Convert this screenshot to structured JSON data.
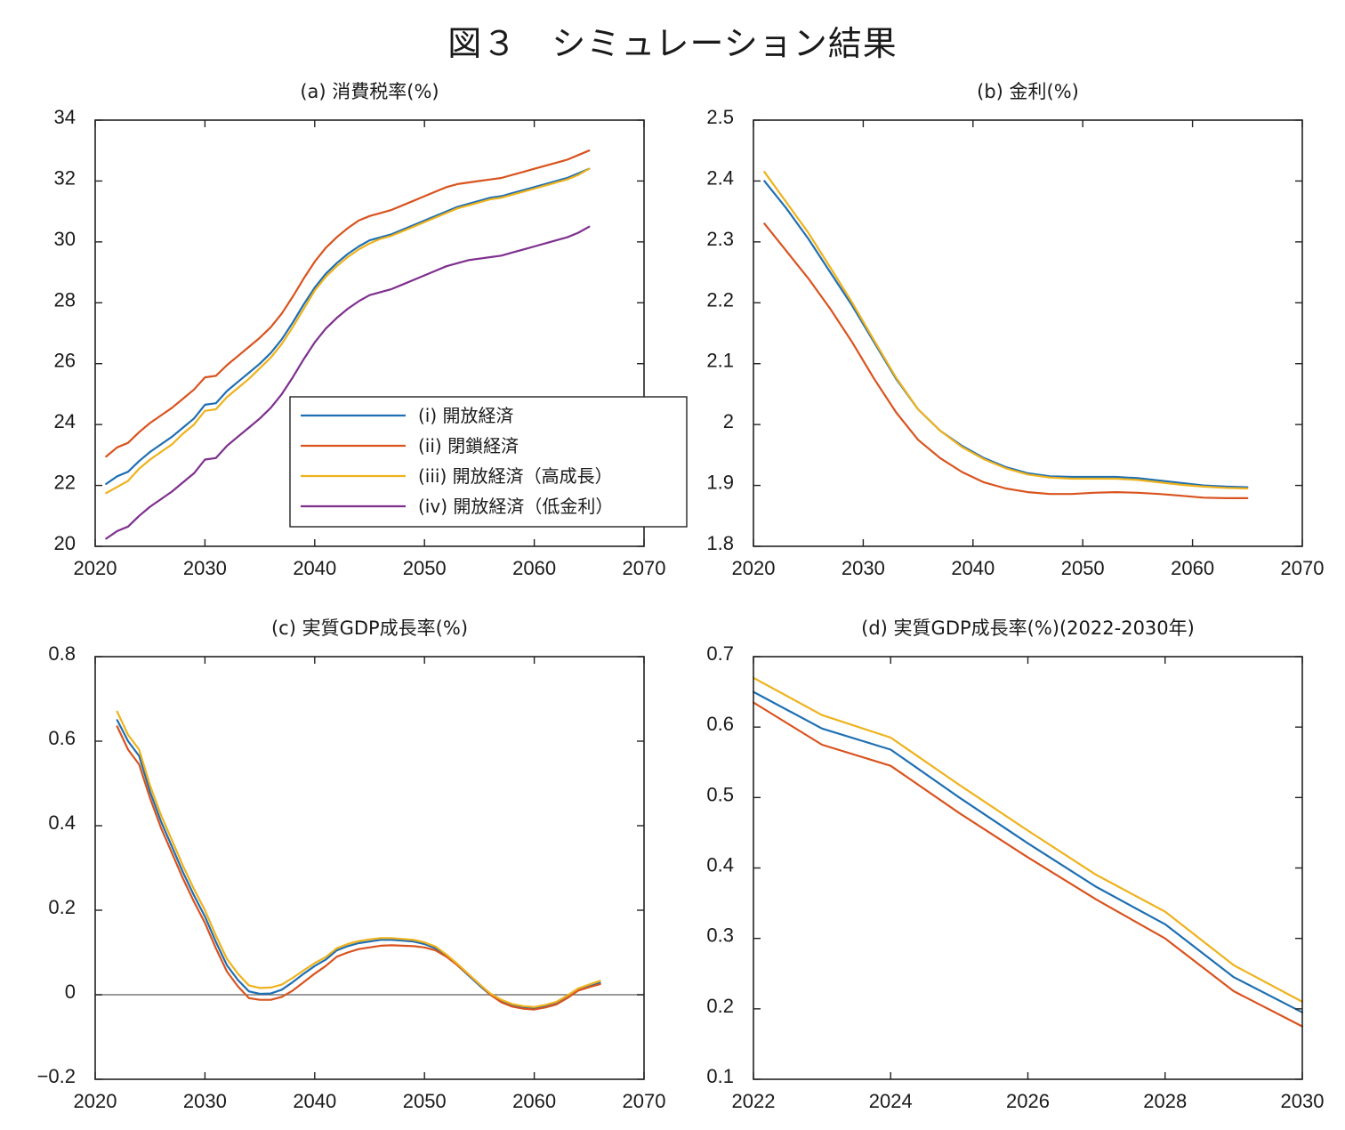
{
  "figure_title": "図３　シミュレーション結果",
  "legend": {
    "entries": [
      {
        "label": "(i) 開放経済",
        "color": "#1f6fb2"
      },
      {
        "label": "(ii) 閉鎖経済",
        "color": "#d9531e"
      },
      {
        "label": "(iii) 開放経済（高成長）",
        "color": "#eeb21c"
      },
      {
        "label": "(iv) 開放経済（低金利）",
        "color": "#7e2f8e"
      }
    ]
  },
  "chart_data": [
    {
      "type": "line",
      "title": "(a) 消費税率(%)",
      "xlim": [
        2020,
        2070
      ],
      "ylim": [
        20,
        34
      ],
      "xticks": [
        2020,
        2030,
        2040,
        2050,
        2060,
        2070
      ],
      "yticks": [
        20,
        22,
        24,
        26,
        28,
        30,
        32,
        34
      ],
      "grid": false,
      "legend_position": "center-right",
      "x": [
        2021,
        2022,
        2023,
        2024,
        2025,
        2026,
        2027,
        2028,
        2029,
        2030,
        2031,
        2032,
        2033,
        2034,
        2035,
        2036,
        2037,
        2038,
        2039,
        2040,
        2041,
        2042,
        2043,
        2044,
        2045,
        2046,
        2047,
        2048,
        2049,
        2050,
        2051,
        2052,
        2053,
        2054,
        2055,
        2056,
        2057,
        2058,
        2059,
        2060,
        2061,
        2062,
        2063,
        2064,
        2065
      ],
      "series": [
        {
          "name": "(i) 開放経済",
          "color": "#1f6fb2",
          "values": [
            22.05,
            22.3,
            22.45,
            22.8,
            23.1,
            23.35,
            23.6,
            23.9,
            24.2,
            24.65,
            24.7,
            25.1,
            25.4,
            25.7,
            26.0,
            26.35,
            26.8,
            27.35,
            27.95,
            28.5,
            28.95,
            29.3,
            29.6,
            29.85,
            30.05,
            30.15,
            30.25,
            30.4,
            30.55,
            30.7,
            30.85,
            31.0,
            31.15,
            31.25,
            31.35,
            31.45,
            31.5,
            31.6,
            31.7,
            31.8,
            31.9,
            32.0,
            32.1,
            32.25,
            32.4
          ]
        },
        {
          "name": "(ii) 閉鎖経済",
          "color": "#d9531e",
          "values": [
            22.95,
            23.25,
            23.4,
            23.75,
            24.05,
            24.3,
            24.55,
            24.85,
            25.15,
            25.55,
            25.6,
            25.95,
            26.25,
            26.55,
            26.85,
            27.2,
            27.65,
            28.2,
            28.8,
            29.35,
            29.8,
            30.15,
            30.45,
            30.7,
            30.85,
            30.95,
            31.05,
            31.2,
            31.35,
            31.5,
            31.65,
            31.8,
            31.9,
            31.95,
            32.0,
            32.05,
            32.1,
            32.2,
            32.3,
            32.4,
            32.5,
            32.6,
            32.7,
            32.85,
            33.0
          ]
        },
        {
          "name": "(iii) 開放経済（高成長）",
          "color": "#eeb21c",
          "values": [
            21.75,
            21.95,
            22.15,
            22.55,
            22.85,
            23.1,
            23.35,
            23.7,
            24.0,
            24.45,
            24.5,
            24.9,
            25.2,
            25.5,
            25.85,
            26.2,
            26.65,
            27.2,
            27.8,
            28.4,
            28.85,
            29.2,
            29.5,
            29.75,
            29.95,
            30.1,
            30.2,
            30.35,
            30.5,
            30.65,
            30.8,
            30.95,
            31.1,
            31.2,
            31.3,
            31.4,
            31.45,
            31.55,
            31.65,
            31.75,
            31.85,
            31.95,
            32.05,
            32.2,
            32.4
          ]
        },
        {
          "name": "(iv) 開放経済（低金利）",
          "color": "#7e2f8e",
          "values": [
            20.25,
            20.5,
            20.65,
            21.0,
            21.3,
            21.55,
            21.8,
            22.1,
            22.4,
            22.85,
            22.9,
            23.3,
            23.6,
            23.9,
            24.2,
            24.55,
            25.0,
            25.55,
            26.15,
            26.7,
            27.15,
            27.5,
            27.8,
            28.05,
            28.25,
            28.35,
            28.45,
            28.6,
            28.75,
            28.9,
            29.05,
            29.2,
            29.3,
            29.4,
            29.45,
            29.5,
            29.55,
            29.65,
            29.75,
            29.85,
            29.95,
            30.05,
            30.15,
            30.3,
            30.5
          ]
        }
      ]
    },
    {
      "type": "line",
      "title": "(b) 金利(%)",
      "xlim": [
        2020,
        2070
      ],
      "ylim": [
        1.8,
        2.5
      ],
      "xticks": [
        2020,
        2030,
        2040,
        2050,
        2060,
        2070
      ],
      "yticks": [
        1.8,
        1.9,
        2,
        2.1,
        2.2,
        2.3,
        2.4,
        2.5
      ],
      "grid": false,
      "x": [
        2021,
        2023,
        2025,
        2027,
        2029,
        2031,
        2033,
        2035,
        2037,
        2039,
        2041,
        2043,
        2045,
        2047,
        2049,
        2051,
        2053,
        2055,
        2057,
        2059,
        2061,
        2063,
        2065
      ],
      "series": [
        {
          "name": "(i) 開放経済",
          "color": "#1f6fb2",
          "values": [
            2.4,
            2.355,
            2.305,
            2.25,
            2.195,
            2.135,
            2.075,
            2.025,
            1.99,
            1.965,
            1.945,
            1.93,
            1.92,
            1.915,
            1.914,
            1.914,
            1.914,
            1.912,
            1.908,
            1.904,
            1.9,
            1.898,
            1.897
          ]
        },
        {
          "name": "(ii) 閉鎖経済",
          "color": "#d9531e",
          "values": [
            2.33,
            2.285,
            2.24,
            2.19,
            2.135,
            2.075,
            2.02,
            1.975,
            1.945,
            1.922,
            1.905,
            1.895,
            1.889,
            1.886,
            1.886,
            1.888,
            1.889,
            1.888,
            1.886,
            1.883,
            1.88,
            1.879,
            1.879
          ]
        },
        {
          "name": "(iii) 開放経済（高成長）",
          "color": "#eeb21c",
          "values": [
            2.415,
            2.365,
            2.315,
            2.258,
            2.2,
            2.138,
            2.077,
            2.025,
            1.99,
            1.963,
            1.943,
            1.928,
            1.918,
            1.913,
            1.911,
            1.911,
            1.911,
            1.909,
            1.905,
            1.901,
            1.898,
            1.896,
            1.895
          ]
        }
      ]
    },
    {
      "type": "line",
      "title": "(c) 実質GDP成長率(%)",
      "xlim": [
        2020,
        2070
      ],
      "ylim": [
        -0.2,
        0.8
      ],
      "xticks": [
        2020,
        2030,
        2040,
        2050,
        2060,
        2070
      ],
      "yticks": [
        -0.2,
        0,
        0.2,
        0.4,
        0.6,
        0.8
      ],
      "ytick_labels": [
        "−0.2",
        "0",
        "0.2",
        "0.4",
        "0.6",
        "0.8"
      ],
      "grid": false,
      "zero_line": true,
      "x": [
        2022,
        2023,
        2024,
        2025,
        2026,
        2027,
        2028,
        2029,
        2030,
        2031,
        2032,
        2033,
        2034,
        2035,
        2036,
        2037,
        2038,
        2039,
        2040,
        2041,
        2042,
        2043,
        2044,
        2045,
        2046,
        2047,
        2048,
        2049,
        2050,
        2051,
        2052,
        2053,
        2054,
        2055,
        2056,
        2057,
        2058,
        2059,
        2060,
        2061,
        2062,
        2063,
        2064,
        2065,
        2066
      ],
      "series": [
        {
          "name": "(i) 開放経済",
          "color": "#1f6fb2",
          "values": [
            0.65,
            0.6,
            0.565,
            0.48,
            0.41,
            0.35,
            0.29,
            0.235,
            0.185,
            0.125,
            0.07,
            0.035,
            0.008,
            0.002,
            0.003,
            0.012,
            0.03,
            0.05,
            0.068,
            0.083,
            0.105,
            0.115,
            0.122,
            0.126,
            0.13,
            0.13,
            0.128,
            0.126,
            0.12,
            0.11,
            0.092,
            0.07,
            0.046,
            0.022,
            0.0,
            -0.015,
            -0.025,
            -0.03,
            -0.032,
            -0.027,
            -0.02,
            -0.005,
            0.012,
            0.02,
            0.028
          ]
        },
        {
          "name": "(ii) 閉鎖経済",
          "color": "#d9531e",
          "values": [
            0.635,
            0.58,
            0.545,
            0.465,
            0.395,
            0.335,
            0.275,
            0.22,
            0.17,
            0.11,
            0.055,
            0.02,
            -0.008,
            -0.012,
            -0.012,
            -0.005,
            0.01,
            0.03,
            0.05,
            0.068,
            0.09,
            0.1,
            0.108,
            0.112,
            0.116,
            0.117,
            0.116,
            0.115,
            0.112,
            0.105,
            0.09,
            0.07,
            0.048,
            0.025,
            0.0,
            -0.018,
            -0.028,
            -0.033,
            -0.035,
            -0.03,
            -0.023,
            -0.008,
            0.01,
            0.018,
            0.025
          ]
        },
        {
          "name": "(iii) 開放経済（高成長）",
          "color": "#eeb21c",
          "values": [
            0.67,
            0.615,
            0.58,
            0.495,
            0.425,
            0.365,
            0.305,
            0.25,
            0.2,
            0.14,
            0.085,
            0.05,
            0.022,
            0.016,
            0.017,
            0.024,
            0.04,
            0.058,
            0.075,
            0.089,
            0.11,
            0.12,
            0.127,
            0.131,
            0.134,
            0.134,
            0.132,
            0.13,
            0.124,
            0.114,
            0.095,
            0.073,
            0.049,
            0.025,
            0.003,
            -0.012,
            -0.022,
            -0.027,
            -0.029,
            -0.024,
            -0.017,
            -0.002,
            0.015,
            0.024,
            0.033
          ]
        }
      ]
    },
    {
      "type": "line",
      "title": "(d) 実質GDP成長率(%)(2022-2030年)",
      "xlim": [
        2022,
        2030
      ],
      "ylim": [
        0.1,
        0.7
      ],
      "xticks": [
        2022,
        2024,
        2026,
        2028,
        2030
      ],
      "yticks": [
        0.1,
        0.2,
        0.3,
        0.4,
        0.5,
        0.6,
        0.7
      ],
      "grid": false,
      "x": [
        2022,
        2023,
        2024,
        2025,
        2026,
        2027,
        2028,
        2029,
        2030
      ],
      "series": [
        {
          "name": "(i) 開放経済",
          "color": "#1f6fb2",
          "values": [
            0.65,
            0.598,
            0.568,
            0.5,
            0.435,
            0.373,
            0.32,
            0.245,
            0.195
          ]
        },
        {
          "name": "(ii) 閉鎖経済",
          "color": "#d9531e",
          "values": [
            0.635,
            0.575,
            0.545,
            0.478,
            0.415,
            0.355,
            0.3,
            0.225,
            0.175
          ]
        },
        {
          "name": "(iii) 開放経済（高成長）",
          "color": "#eeb21c",
          "values": [
            0.67,
            0.617,
            0.585,
            0.518,
            0.453,
            0.39,
            0.338,
            0.262,
            0.21
          ]
        }
      ]
    }
  ]
}
